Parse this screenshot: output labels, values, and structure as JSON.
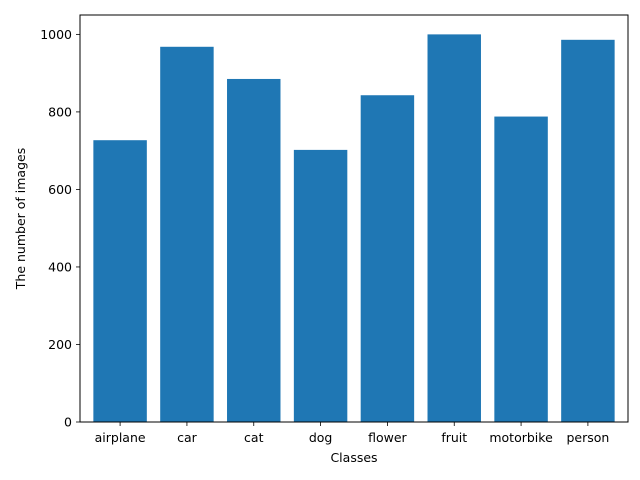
{
  "chart_data": {
    "type": "bar",
    "title": "",
    "xlabel": "Classes",
    "ylabel": "The number of images",
    "categories": [
      "airplane",
      "car",
      "cat",
      "dog",
      "flower",
      "fruit",
      "motorbike",
      "person"
    ],
    "values": [
      727,
      968,
      885,
      702,
      843,
      1000,
      788,
      986
    ],
    "ylim": [
      0,
      1050
    ],
    "yticks": [
      0,
      200,
      400,
      600,
      800,
      1000
    ],
    "bar_color": "#1f77b4",
    "grid": false,
    "legend": "none"
  }
}
